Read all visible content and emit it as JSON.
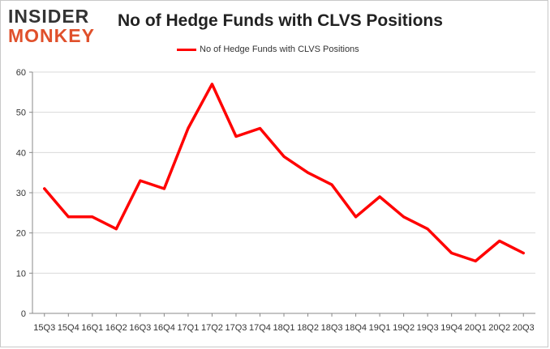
{
  "logo": {
    "line1": "INSIDER",
    "line2": "MONKEY"
  },
  "chart_data": {
    "type": "line",
    "title": "No of Hedge Funds with CLVS Positions",
    "xlabel": "",
    "ylabel": "",
    "legend_position": "top",
    "grid": true,
    "ylim": [
      0,
      60
    ],
    "yticks": [
      0,
      10,
      20,
      30,
      40,
      50,
      60
    ],
    "categories": [
      "15Q3",
      "15Q4",
      "16Q1",
      "16Q2",
      "16Q3",
      "16Q4",
      "17Q1",
      "17Q2",
      "17Q3",
      "17Q4",
      "18Q1",
      "18Q2",
      "18Q3",
      "18Q4",
      "19Q1",
      "19Q2",
      "19Q3",
      "19Q4",
      "20Q1",
      "20Q2",
      "20Q3"
    ],
    "series": [
      {
        "name": "No of Hedge Funds with CLVS Positions",
        "color": "#ff0000",
        "values": [
          31,
          24,
          24,
          21,
          33,
          31,
          46,
          57,
          44,
          46,
          39,
          35,
          32,
          24,
          29,
          24,
          21,
          15,
          13,
          18,
          15
        ]
      }
    ]
  }
}
